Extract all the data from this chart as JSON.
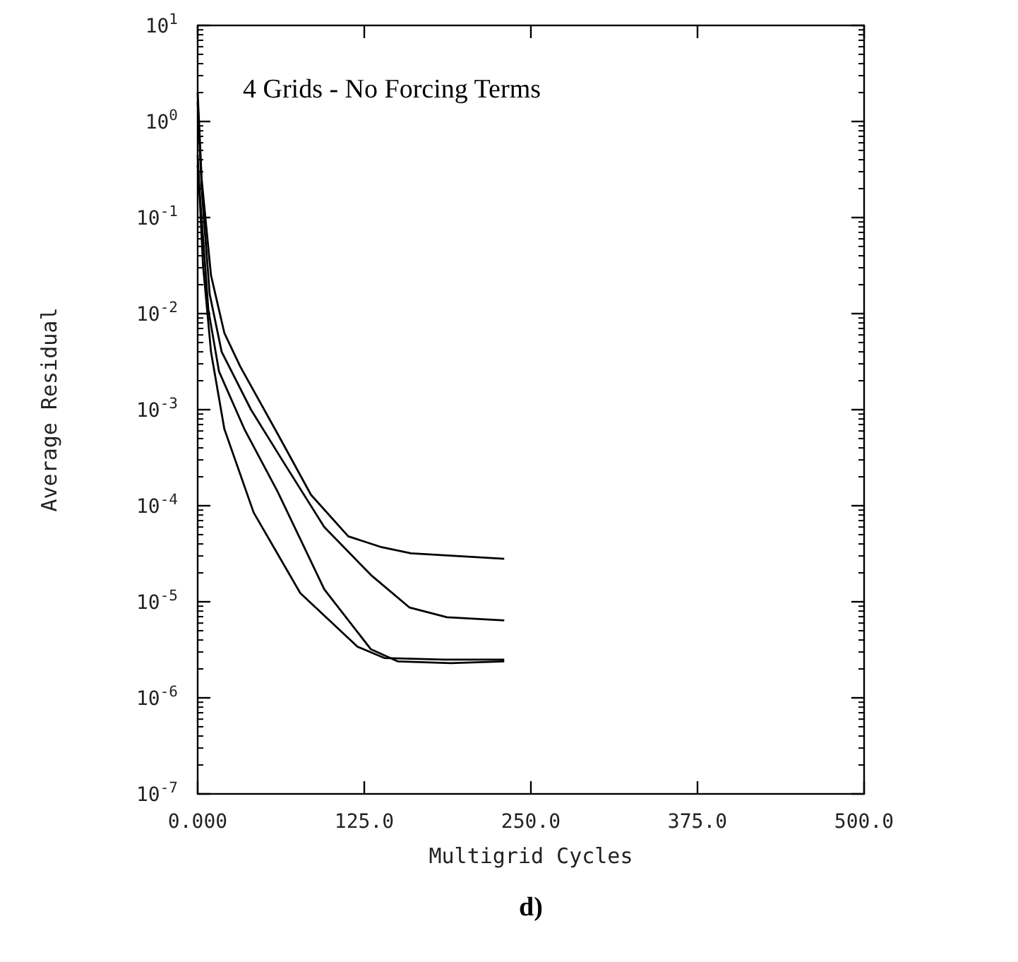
{
  "chart_data": {
    "type": "line",
    "title": "4 Grids - No Forcing Terms",
    "xlabel": "Multigrid Cycles",
    "ylabel": "Average Residual",
    "annotations": [
      "d)"
    ],
    "log": "y",
    "grid": false,
    "marker": "none",
    "line_style": "solid",
    "xlim": [
      0,
      500
    ],
    "ylim": [
      1e-07,
      10
    ],
    "xticks": [
      {
        "value": 0,
        "label": "0.000"
      },
      {
        "value": 125,
        "label": "125.0"
      },
      {
        "value": 250,
        "label": "250.0"
      },
      {
        "value": 375,
        "label": "375.0"
      },
      {
        "value": 500,
        "label": "500.0"
      }
    ],
    "yticks": [
      {
        "value": 1e-07,
        "label": "10$^{-7}$"
      },
      {
        "value": 1e-06,
        "label": "10$^{-6}$"
      },
      {
        "value": 1e-05,
        "label": "10$^{-5}$"
      },
      {
        "value": 0.0001,
        "label": "10$^{-4}$"
      },
      {
        "value": 0.001,
        "label": "10$^{-3}$"
      },
      {
        "value": 0.01,
        "label": "10$^{-2}$"
      },
      {
        "value": 0.1,
        "label": "10$^{-1}$"
      },
      {
        "value": 1,
        "label": "10$^{0}$"
      },
      {
        "value": 10,
        "label": "10$^{1}$"
      }
    ],
    "series": [
      {
        "color": "#000000",
        "x": [
          0,
          3,
          10,
          20,
          32,
          60,
          85,
          113,
          138,
          160,
          230
        ],
        "values": [
          2,
          0.25,
          0.025,
          0.0063,
          0.0028,
          0.00056,
          0.00013,
          4.8e-05,
          3.7e-05,
          3.2e-05,
          2.8e-05
        ]
      },
      {
        "color": "#000000",
        "x": [
          0,
          3,
          9,
          18,
          40,
          64,
          95,
          130,
          159,
          187,
          230
        ],
        "values": [
          1.6,
          0.2,
          0.016,
          0.004,
          0.001,
          0.00029,
          6e-05,
          1.9e-05,
          8.7e-06,
          6.9e-06,
          6.4e-06
        ]
      },
      {
        "color": "#000000",
        "x": [
          0,
          4,
          8,
          16,
          35,
          60,
          95,
          130,
          150,
          190,
          230
        ],
        "values": [
          0.35,
          0.063,
          0.011,
          0.0025,
          0.00063,
          0.00014,
          1.35e-05,
          3.2e-06,
          2.4e-06,
          2.3e-06,
          2.4e-06
        ]
      },
      {
        "color": "#000000",
        "x": [
          0,
          4,
          10,
          20,
          42,
          77,
          120,
          140,
          185,
          230
        ],
        "values": [
          0.45,
          0.032,
          0.004,
          0.00063,
          8.5e-05,
          1.23e-05,
          3.4e-06,
          2.6e-06,
          2.5e-06,
          2.5e-06
        ]
      }
    ]
  }
}
